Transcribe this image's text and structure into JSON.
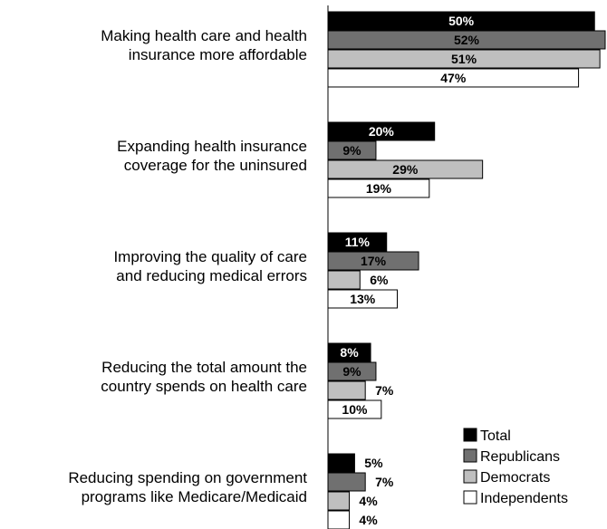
{
  "chart_data": {
    "type": "bar",
    "orientation": "horizontal",
    "categories": [
      [
        "Making health care and health",
        "insurance more affordable"
      ],
      [
        "Expanding health insurance",
        "coverage for the uninsured"
      ],
      [
        "Improving the quality of care",
        "and reducing medical errors"
      ],
      [
        "Reducing the total amount the",
        "country spends on health care"
      ],
      [
        "Reducing spending on government",
        "programs like Medicare/Medicaid"
      ]
    ],
    "series": [
      {
        "name": "Total",
        "color": "#000000",
        "text_color": "#ffffff",
        "values": [
          50,
          20,
          11,
          8,
          5
        ]
      },
      {
        "name": "Republicans",
        "color": "#707070",
        "text_color": "#000000",
        "values": [
          52,
          9,
          17,
          9,
          7
        ]
      },
      {
        "name": "Democrats",
        "color": "#bfbfbf",
        "text_color": "#000000",
        "values": [
          51,
          29,
          6,
          7,
          4
        ]
      },
      {
        "name": "Independents",
        "color": "#ffffff",
        "text_color": "#000000",
        "values": [
          47,
          19,
          13,
          10,
          4
        ]
      }
    ],
    "value_suffix": "%",
    "xlim": [
      0,
      52
    ],
    "legend_position": "bottom-right",
    "grid": false
  }
}
